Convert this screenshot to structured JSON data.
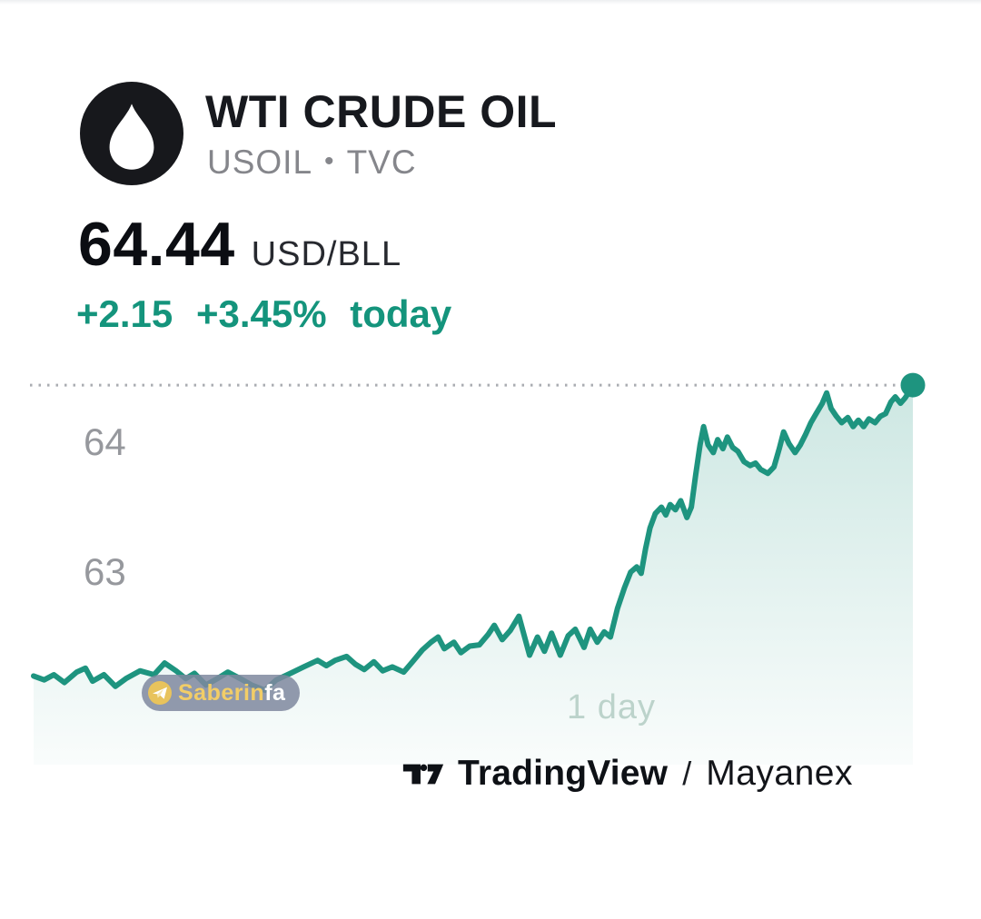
{
  "header": {
    "title": "WTI CRUDE OIL",
    "symbol": "USOIL",
    "separator": "•",
    "exchange": "TVC"
  },
  "quote": {
    "price": "64.44",
    "unit": "USD/BLL",
    "change_abs": "+2.15",
    "change_pct": "+3.45%",
    "change_suffix": "today",
    "change_color": "#14947c"
  },
  "watermark": {
    "icon": "telegram-plane-icon",
    "text_primary": "Saberin",
    "text_secondary": "fa"
  },
  "footer": {
    "brand": "TradingView",
    "separator": "/",
    "author": "Mayanex"
  },
  "chart_data": {
    "type": "area",
    "title": "",
    "xlabel": "",
    "ylabel": "USD/BLL",
    "x_range_label": "1 day",
    "y_ticks": [
      64,
      63
    ],
    "ylim": [
      61.6,
      64.6
    ],
    "grid": false,
    "legend": false,
    "current_price": 64.44,
    "current_price_line": "dotted",
    "line_color": "#1e947f",
    "fill_color": "#1e947f",
    "fill_opacity_top": 0.22,
    "fill_opacity_bottom": 0.02,
    "series": [
      {
        "name": "USOIL",
        "points": [
          [
            0.0,
            62.2
          ],
          [
            0.012,
            62.17
          ],
          [
            0.023,
            62.21
          ],
          [
            0.035,
            62.15
          ],
          [
            0.049,
            62.23
          ],
          [
            0.059,
            62.26
          ],
          [
            0.067,
            62.16
          ],
          [
            0.08,
            62.21
          ],
          [
            0.093,
            62.12
          ],
          [
            0.105,
            62.18
          ],
          [
            0.121,
            62.24
          ],
          [
            0.137,
            62.21
          ],
          [
            0.149,
            62.3
          ],
          [
            0.162,
            62.24
          ],
          [
            0.173,
            62.18
          ],
          [
            0.183,
            62.22
          ],
          [
            0.196,
            62.13
          ],
          [
            0.209,
            62.18
          ],
          [
            0.221,
            62.23
          ],
          [
            0.235,
            62.18
          ],
          [
            0.248,
            62.13
          ],
          [
            0.263,
            62.09
          ],
          [
            0.276,
            62.17
          ],
          [
            0.292,
            62.22
          ],
          [
            0.307,
            62.27
          ],
          [
            0.323,
            62.32
          ],
          [
            0.333,
            62.28
          ],
          [
            0.343,
            62.32
          ],
          [
            0.356,
            62.35
          ],
          [
            0.366,
            62.29
          ],
          [
            0.376,
            62.25
          ],
          [
            0.387,
            62.31
          ],
          [
            0.397,
            62.24
          ],
          [
            0.408,
            62.27
          ],
          [
            0.421,
            62.23
          ],
          [
            0.431,
            62.31
          ],
          [
            0.442,
            62.4
          ],
          [
            0.452,
            62.46
          ],
          [
            0.46,
            62.5
          ],
          [
            0.467,
            62.41
          ],
          [
            0.478,
            62.46
          ],
          [
            0.486,
            62.38
          ],
          [
            0.496,
            62.43
          ],
          [
            0.507,
            62.44
          ],
          [
            0.517,
            62.52
          ],
          [
            0.524,
            62.59
          ],
          [
            0.533,
            62.48
          ],
          [
            0.542,
            62.55
          ],
          [
            0.552,
            62.66
          ],
          [
            0.564,
            62.36
          ],
          [
            0.573,
            62.5
          ],
          [
            0.581,
            62.39
          ],
          [
            0.589,
            62.53
          ],
          [
            0.599,
            62.36
          ],
          [
            0.608,
            62.51
          ],
          [
            0.616,
            62.56
          ],
          [
            0.626,
            62.42
          ],
          [
            0.633,
            62.56
          ],
          [
            0.641,
            62.46
          ],
          [
            0.649,
            62.54
          ],
          [
            0.656,
            62.5
          ],
          [
            0.664,
            62.72
          ],
          [
            0.672,
            62.88
          ],
          [
            0.679,
            63.0
          ],
          [
            0.686,
            63.04
          ],
          [
            0.691,
            62.99
          ],
          [
            0.696,
            63.18
          ],
          [
            0.701,
            63.34
          ],
          [
            0.707,
            63.45
          ],
          [
            0.714,
            63.5
          ],
          [
            0.719,
            63.44
          ],
          [
            0.724,
            63.52
          ],
          [
            0.73,
            63.48
          ],
          [
            0.736,
            63.55
          ],
          [
            0.743,
            63.42
          ],
          [
            0.748,
            63.5
          ],
          [
            0.753,
            63.75
          ],
          [
            0.758,
            63.98
          ],
          [
            0.762,
            64.12
          ],
          [
            0.767,
            63.98
          ],
          [
            0.773,
            63.92
          ],
          [
            0.778,
            64.02
          ],
          [
            0.784,
            63.95
          ],
          [
            0.789,
            64.04
          ],
          [
            0.795,
            63.96
          ],
          [
            0.801,
            63.93
          ],
          [
            0.808,
            63.85
          ],
          [
            0.815,
            63.82
          ],
          [
            0.821,
            63.84
          ],
          [
            0.827,
            63.79
          ],
          [
            0.835,
            63.76
          ],
          [
            0.842,
            63.81
          ],
          [
            0.848,
            63.95
          ],
          [
            0.853,
            64.08
          ],
          [
            0.859,
            63.99
          ],
          [
            0.866,
            63.92
          ],
          [
            0.872,
            63.98
          ],
          [
            0.878,
            64.06
          ],
          [
            0.884,
            64.15
          ],
          [
            0.89,
            64.22
          ],
          [
            0.897,
            64.3
          ],
          [
            0.902,
            64.38
          ],
          [
            0.907,
            64.26
          ],
          [
            0.913,
            64.2
          ],
          [
            0.919,
            64.15
          ],
          [
            0.926,
            64.19
          ],
          [
            0.932,
            64.12
          ],
          [
            0.938,
            64.17
          ],
          [
            0.944,
            64.12
          ],
          [
            0.95,
            64.18
          ],
          [
            0.957,
            64.15
          ],
          [
            0.963,
            64.2
          ],
          [
            0.969,
            64.22
          ],
          [
            0.975,
            64.31
          ],
          [
            0.98,
            64.35
          ],
          [
            0.986,
            64.3
          ],
          [
            0.991,
            64.34
          ],
          [
            0.995,
            64.38
          ],
          [
            1.0,
            64.44
          ]
        ]
      }
    ]
  }
}
